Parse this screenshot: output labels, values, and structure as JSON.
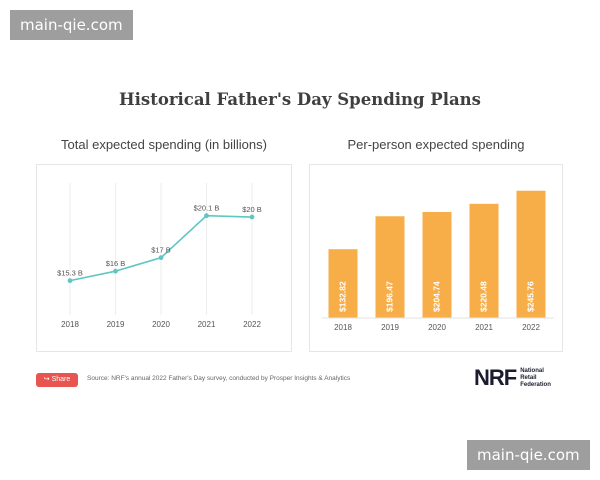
{
  "watermark": "main-qie.com",
  "title": "Historical Father's Day Spending Plans",
  "share_label": "Share",
  "source": "Source: NRF's annual 2022 Father's Day survey, conducted by Prosper Insights & Analytics",
  "logo": {
    "mark": "NRF",
    "line1": "National",
    "line2": "Retail",
    "line3": "Federation"
  },
  "colors": {
    "line": "#5ec6c4",
    "bar": "#f7ae48",
    "share": "#e8544f"
  },
  "chart_data": [
    {
      "type": "line",
      "title": "Total expected spending (in billions)",
      "categories": [
        "2018",
        "2019",
        "2020",
        "2021",
        "2022"
      ],
      "values": [
        15.3,
        16,
        17,
        20.1,
        20
      ],
      "data_labels": [
        "$15.3 B",
        "$16 B",
        "$17 B",
        "$20.1 B",
        "$20 B"
      ],
      "ylim": [
        13.5,
        22
      ],
      "grid": "vertical"
    },
    {
      "type": "bar",
      "title": "Per-person expected spending",
      "categories": [
        "2018",
        "2019",
        "2020",
        "2021",
        "2022"
      ],
      "values": [
        132.82,
        196.47,
        204.74,
        220.48,
        245.76
      ],
      "data_labels": [
        "$132.82",
        "$196.47",
        "$204.74",
        "$220.48",
        "$245.76"
      ],
      "ylim": [
        0,
        280
      ]
    }
  ]
}
